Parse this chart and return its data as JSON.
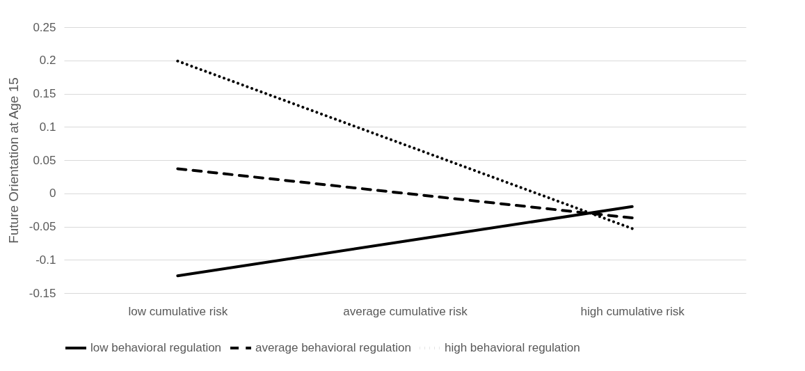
{
  "chart_data": {
    "type": "line",
    "ylabel": "Future Orientation at Age 15",
    "categories": [
      "low cumulative risk",
      "average cumulative risk",
      "high cumulative risk"
    ],
    "series": [
      {
        "name": "low behavioral regulation",
        "color": "#000000",
        "line_style": "solid",
        "values": [
          -0.124,
          -0.072,
          -0.02
        ]
      },
      {
        "name": "average behavioral regulation",
        "color": "#000000",
        "line_style": "dashed",
        "values": [
          0.037,
          0.0,
          -0.037
        ]
      },
      {
        "name": "high behavioral regulation",
        "color": "#000000",
        "line_style": "dotted",
        "values": [
          0.199,
          0.073,
          -0.053
        ]
      }
    ],
    "ylim": [
      -0.15,
      0.25
    ],
    "yticks": [
      -0.15,
      -0.1,
      -0.05,
      0,
      0.05,
      0.1,
      0.15,
      0.2,
      0.25
    ],
    "grid": "y",
    "legend": "bottom",
    "marker": "none"
  }
}
